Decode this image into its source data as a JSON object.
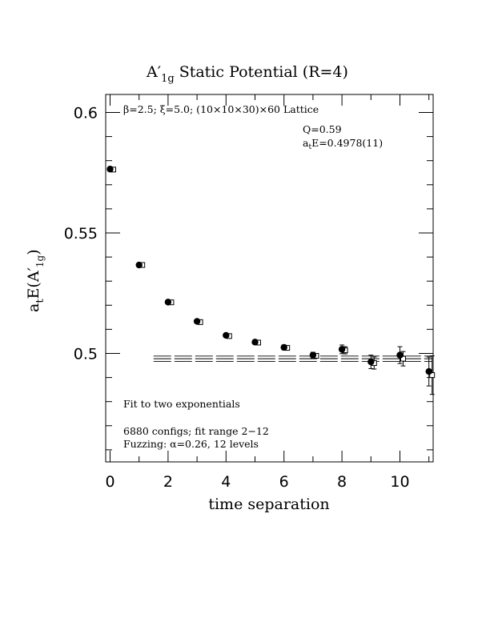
{
  "chart_data": {
    "type": "scatter",
    "title_main": "A",
    "title_prime": "′",
    "title_sub": "1g",
    "title_rest": " Static Potential (R=4)",
    "lattice_text": "β=2.5; ξ=5.0; (10×10×30)×60 Lattice",
    "q_text": "Q=0.59",
    "energy_prefix": "a",
    "energy_sub": "t",
    "energy_rest": "E=0.4978(11)",
    "fit_text": "Fit to two exponentials",
    "configs_text": "6880 configs; fit range 2−12",
    "fuzzing_text": "Fuzzing: α=0.26, 12 levels",
    "xlabel": "time separation",
    "ylabel_main": "a",
    "ylabel_sub": "t",
    "ylabel_mid": "E(A",
    "ylabel_prime": "′",
    "ylabel_sub2": "1g",
    "ylabel_end": ")",
    "xlim": [
      0,
      11
    ],
    "ylim": [
      0.455,
      0.608
    ],
    "x_ticks": [
      0,
      2,
      4,
      6,
      8,
      10
    ],
    "x_tick_labels": [
      "0",
      "2",
      "4",
      "6",
      "8",
      "10"
    ],
    "y_ticks": [
      0.5,
      0.55,
      0.6
    ],
    "y_tick_labels": [
      "0.5",
      "0.55",
      "0.6"
    ],
    "series": [
      {
        "marker": "filled-circle",
        "x": [
          0,
          1,
          2,
          3,
          4,
          5,
          6,
          7,
          8,
          9,
          10,
          11
        ],
        "y": [
          0.5765,
          0.5367,
          0.5213,
          0.5133,
          0.5075,
          0.5047,
          0.5025,
          0.4993,
          0.5017,
          0.4965,
          0.4993,
          0.4925
        ],
        "err": [
          0.0005,
          0.0005,
          0.0006,
          0.0006,
          0.0007,
          0.0008,
          0.001,
          0.0012,
          0.0018,
          0.0028,
          0.0035,
          0.006
        ]
      },
      {
        "marker": "open-square",
        "x": [
          0,
          1,
          2,
          3,
          4,
          5,
          6,
          7,
          8,
          9,
          10,
          11
        ],
        "y": [
          0.5763,
          0.5367,
          0.5212,
          0.513,
          0.5072,
          0.5045,
          0.5023,
          0.499,
          0.5013,
          0.496,
          0.4978,
          0.491
        ],
        "err": [
          0.0003,
          0.0003,
          0.0004,
          0.0004,
          0.0005,
          0.0006,
          0.0008,
          0.001,
          0.0015,
          0.0025,
          0.003,
          0.008
        ]
      }
    ],
    "fit": {
      "value": 0.4978,
      "error": 0.0011,
      "x_range": [
        1.5,
        11
      ]
    }
  }
}
